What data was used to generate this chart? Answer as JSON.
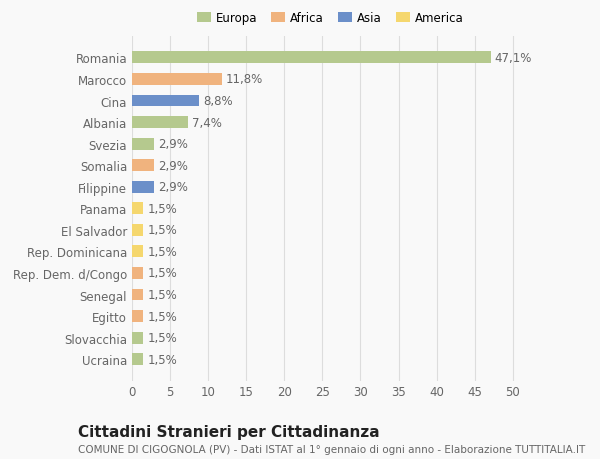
{
  "categories": [
    "Romania",
    "Marocco",
    "Cina",
    "Albania",
    "Svezia",
    "Somalia",
    "Filippine",
    "Panama",
    "El Salvador",
    "Rep. Dominicana",
    "Rep. Dem. d/Congo",
    "Senegal",
    "Egitto",
    "Slovacchia",
    "Ucraina"
  ],
  "values": [
    47.1,
    11.8,
    8.8,
    7.4,
    2.9,
    2.9,
    2.9,
    1.5,
    1.5,
    1.5,
    1.5,
    1.5,
    1.5,
    1.5,
    1.5
  ],
  "labels": [
    "47,1%",
    "11,8%",
    "8,8%",
    "7,4%",
    "2,9%",
    "2,9%",
    "2,9%",
    "1,5%",
    "1,5%",
    "1,5%",
    "1,5%",
    "1,5%",
    "1,5%",
    "1,5%",
    "1,5%"
  ],
  "colors": [
    "#b5c98e",
    "#f0b37e",
    "#6b8fc9",
    "#b5c98e",
    "#b5c98e",
    "#f0b37e",
    "#6b8fc9",
    "#f5d76e",
    "#f5d76e",
    "#f5d76e",
    "#f0b37e",
    "#f0b37e",
    "#f0b37e",
    "#b5c98e",
    "#b5c98e"
  ],
  "legend_labels": [
    "Europa",
    "Africa",
    "Asia",
    "America"
  ],
  "legend_colors": [
    "#b5c98e",
    "#f0b37e",
    "#6b8fc9",
    "#f5d76e"
  ],
  "xlim": [
    0,
    52
  ],
  "xticks": [
    0,
    5,
    10,
    15,
    20,
    25,
    30,
    35,
    40,
    45,
    50
  ],
  "title": "Cittadini Stranieri per Cittadinanza",
  "subtitle": "COMUNE DI CIGOGNOLA (PV) - Dati ISTAT al 1° gennaio di ogni anno - Elaborazione TUTTITALIA.IT",
  "background_color": "#f9f9f9",
  "grid_color": "#dddddd",
  "text_color": "#666666",
  "bar_height": 0.55,
  "label_fontsize": 8.5,
  "tick_fontsize": 8.5,
  "title_fontsize": 11,
  "subtitle_fontsize": 7.5
}
